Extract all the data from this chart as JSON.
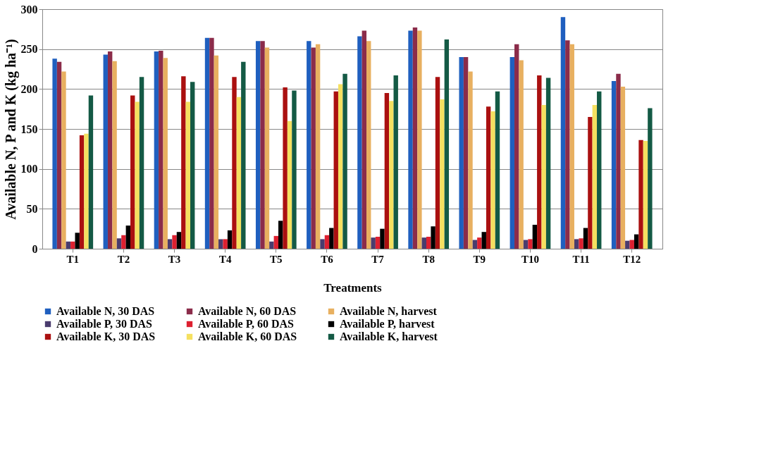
{
  "chart_data": {
    "type": "bar",
    "xlabel": "Treatments",
    "ylabel": "Available N, P and K  (kg ha⁻¹)",
    "categories": [
      "T1",
      "T2",
      "T3",
      "T4",
      "T5",
      "T6",
      "T7",
      "T8",
      "T9",
      "T10",
      "T11",
      "T12"
    ],
    "ylim": [
      0,
      300
    ],
    "yticks": [
      0,
      50,
      100,
      150,
      200,
      250,
      300
    ],
    "grid": "y",
    "legend": "bottom",
    "series": [
      {
        "name": "Available N, 30 DAS",
        "color": "#1f5fbf",
        "values": [
          238,
          243,
          247,
          264,
          260,
          260,
          266,
          273,
          240,
          240,
          290,
          210
        ]
      },
      {
        "name": "Available N, 60 DAS",
        "color": "#8b2c4a",
        "values": [
          234,
          247,
          248,
          264,
          260,
          252,
          273,
          277,
          240,
          256,
          261,
          219
        ]
      },
      {
        "name": "Available N, harvest",
        "color": "#e8b060",
        "values": [
          222,
          235,
          239,
          242,
          252,
          256,
          260,
          273,
          222,
          236,
          256,
          203
        ]
      },
      {
        "name": "Available P, 30 DAS",
        "color": "#4a3c6e",
        "values": [
          9,
          13,
          12,
          12,
          9,
          12,
          14,
          14,
          11,
          11,
          12,
          10
        ]
      },
      {
        "name": "Available P, 60 DAS",
        "color": "#dd2030",
        "values": [
          9,
          17,
          17,
          12,
          16,
          17,
          15,
          15,
          14,
          12,
          13,
          11
        ]
      },
      {
        "name": "Available P, harvest",
        "color": "#000000",
        "values": [
          20,
          29,
          21,
          23,
          35,
          26,
          25,
          28,
          21,
          30,
          26,
          18
        ]
      },
      {
        "name": "Available K, 30 DAS",
        "color": "#aa1010",
        "values": [
          142,
          192,
          216,
          215,
          202,
          197,
          195,
          215,
          178,
          217,
          165,
          136
        ]
      },
      {
        "name": "Available K, 60 DAS",
        "color": "#f5e060",
        "values": [
          144,
          184,
          184,
          190,
          160,
          206,
          185,
          187,
          172,
          180,
          180,
          135
        ]
      },
      {
        "name": "Available K, harvest",
        "color": "#145a45",
        "values": [
          192,
          215,
          209,
          234,
          198,
          219,
          217,
          262,
          197,
          214,
          197,
          176
        ]
      }
    ]
  }
}
